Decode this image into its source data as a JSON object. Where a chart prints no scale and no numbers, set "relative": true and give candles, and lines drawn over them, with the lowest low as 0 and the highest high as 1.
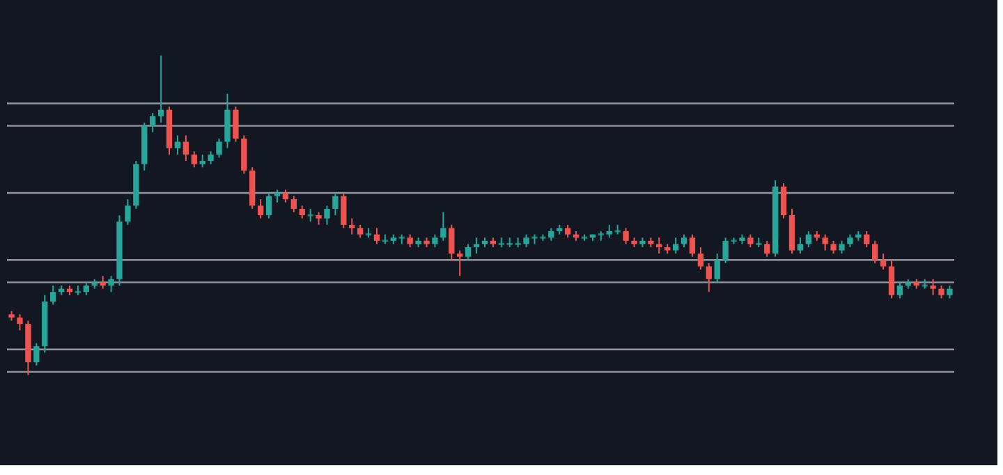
{
  "chart_data": {
    "type": "candlestick",
    "relative": true,
    "tick_labels": false,
    "grid": false,
    "categories": [
      null,
      null,
      null,
      null,
      null,
      null,
      null,
      null,
      null,
      null,
      null,
      null,
      null,
      null,
      null,
      null,
      null,
      null,
      null,
      null,
      null,
      null,
      null,
      null,
      null,
      null,
      null,
      null,
      null,
      null,
      null,
      null,
      null,
      null,
      null,
      null,
      null,
      null,
      null,
      null,
      null,
      null,
      null,
      null,
      null,
      null,
      null,
      null,
      null,
      null,
      null,
      null,
      null,
      null,
      null,
      null,
      null,
      null,
      null,
      null,
      null,
      null,
      null,
      null,
      null,
      null,
      null,
      null,
      null,
      null,
      null,
      null,
      null,
      null,
      null,
      null,
      null,
      null,
      null,
      null,
      null,
      null,
      null,
      null,
      null,
      null,
      null,
      null,
      null,
      null,
      null,
      null,
      null,
      null,
      null,
      null,
      null,
      null,
      null,
      null,
      null,
      null,
      null,
      null,
      null,
      null,
      null,
      null,
      null,
      null,
      null,
      null,
      null,
      null
    ],
    "ohlc": [
      [
        0.19,
        0.2,
        0.17,
        0.18
      ],
      [
        0.18,
        0.19,
        0.14,
        0.16
      ],
      [
        0.16,
        0.17,
        0,
        0.04
      ],
      [
        0.04,
        0.1,
        0.03,
        0.09
      ],
      [
        0.09,
        0.25,
        0.07,
        0.23
      ],
      [
        0.23,
        0.28,
        0.22,
        0.26
      ],
      [
        0.26,
        0.28,
        0.25,
        0.27
      ],
      [
        0.27,
        0.28,
        0.25,
        0.26
      ],
      [
        0.26,
        0.28,
        0.25,
        0.26
      ],
      [
        0.26,
        0.29,
        0.25,
        0.28
      ],
      [
        0.28,
        0.3,
        0.27,
        0.29
      ],
      [
        0.29,
        0.31,
        0.27,
        0.28
      ],
      [
        0.28,
        0.31,
        0.26,
        0.3
      ],
      [
        0.3,
        0.5,
        0.28,
        0.48
      ],
      [
        0.48,
        0.55,
        0.47,
        0.53
      ],
      [
        0.53,
        0.67,
        0.52,
        0.66
      ],
      [
        0.66,
        0.79,
        0.64,
        0.78
      ],
      [
        0.78,
        0.82,
        0.76,
        0.81
      ],
      [
        0.81,
        1,
        0.79,
        0.83
      ],
      [
        0.83,
        0.84,
        0.69,
        0.71
      ],
      [
        0.71,
        0.75,
        0.69,
        0.73
      ],
      [
        0.73,
        0.75,
        0.67,
        0.69
      ],
      [
        0.69,
        0.7,
        0.65,
        0.66
      ],
      [
        0.66,
        0.69,
        0.65,
        0.67
      ],
      [
        0.67,
        0.7,
        0.66,
        0.69
      ],
      [
        0.69,
        0.74,
        0.68,
        0.73
      ],
      [
        0.73,
        0.88,
        0.71,
        0.83
      ],
      [
        0.83,
        0.84,
        0.73,
        0.74
      ],
      [
        0.74,
        0.75,
        0.63,
        0.64
      ],
      [
        0.64,
        0.65,
        0.52,
        0.53
      ],
      [
        0.53,
        0.55,
        0.49,
        0.5
      ],
      [
        0.5,
        0.57,
        0.49,
        0.56
      ],
      [
        0.56,
        0.58,
        0.54,
        0.57
      ],
      [
        0.57,
        0.58,
        0.54,
        0.55
      ],
      [
        0.55,
        0.56,
        0.51,
        0.52
      ],
      [
        0.52,
        0.53,
        0.49,
        0.5
      ],
      [
        0.5,
        0.52,
        0.48,
        0.5
      ],
      [
        0.5,
        0.51,
        0.47,
        0.49
      ],
      [
        0.49,
        0.53,
        0.47,
        0.52
      ],
      [
        0.52,
        0.57,
        0.5,
        0.56
      ],
      [
        0.56,
        0.57,
        0.46,
        0.47
      ],
      [
        0.47,
        0.49,
        0.44,
        0.46
      ],
      [
        0.46,
        0.47,
        0.43,
        0.44
      ],
      [
        0.44,
        0.46,
        0.43,
        0.44
      ],
      [
        0.44,
        0.46,
        0.41,
        0.42
      ],
      [
        0.42,
        0.44,
        0.41,
        0.42
      ],
      [
        0.42,
        0.44,
        0.41,
        0.43
      ],
      [
        0.43,
        0.44,
        0.41,
        0.43
      ],
      [
        0.43,
        0.44,
        0.4,
        0.41
      ],
      [
        0.41,
        0.43,
        0.4,
        0.42
      ],
      [
        0.42,
        0.43,
        0.4,
        0.41
      ],
      [
        0.41,
        0.44,
        0.4,
        0.43
      ],
      [
        0.43,
        0.51,
        0.42,
        0.46
      ],
      [
        0.46,
        0.47,
        0.36,
        0.38
      ],
      [
        0.38,
        0.39,
        0.31,
        0.37
      ],
      [
        0.37,
        0.41,
        0.36,
        0.4
      ],
      [
        0.4,
        0.43,
        0.38,
        0.41
      ],
      [
        0.41,
        0.43,
        0.4,
        0.42
      ],
      [
        0.42,
        0.43,
        0.4,
        0.41
      ],
      [
        0.41,
        0.43,
        0.4,
        0.41
      ],
      [
        0.41,
        0.43,
        0.4,
        0.41
      ],
      [
        0.41,
        0.43,
        0.4,
        0.41
      ],
      [
        0.41,
        0.44,
        0.4,
        0.43
      ],
      [
        0.43,
        0.44,
        0.41,
        0.43
      ],
      [
        0.43,
        0.44,
        0.42,
        0.43
      ],
      [
        0.43,
        0.46,
        0.42,
        0.45
      ],
      [
        0.45,
        0.47,
        0.44,
        0.46
      ],
      [
        0.46,
        0.47,
        0.43,
        0.44
      ],
      [
        0.44,
        0.45,
        0.42,
        0.43
      ],
      [
        0.43,
        0.44,
        0.42,
        0.43
      ],
      [
        0.43,
        0.44,
        0.42,
        0.44
      ],
      [
        0.44,
        0.45,
        0.42,
        0.44
      ],
      [
        0.44,
        0.47,
        0.43,
        0.45
      ],
      [
        0.45,
        0.47,
        0.44,
        0.45
      ],
      [
        0.45,
        0.46,
        0.41,
        0.42
      ],
      [
        0.42,
        0.43,
        0.4,
        0.41
      ],
      [
        0.41,
        0.43,
        0.4,
        0.42
      ],
      [
        0.42,
        0.43,
        0.4,
        0.41
      ],
      [
        0.41,
        0.43,
        0.38,
        0.4
      ],
      [
        0.4,
        0.41,
        0.38,
        0.39
      ],
      [
        0.39,
        0.43,
        0.38,
        0.41
      ],
      [
        0.41,
        0.44,
        0.4,
        0.43
      ],
      [
        0.43,
        0.44,
        0.37,
        0.38
      ],
      [
        0.38,
        0.4,
        0.33,
        0.34
      ],
      [
        0.34,
        0.35,
        0.26,
        0.3
      ],
      [
        0.3,
        0.38,
        0.29,
        0.36
      ],
      [
        0.36,
        0.43,
        0.35,
        0.42
      ],
      [
        0.42,
        0.43,
        0.41,
        0.42
      ],
      [
        0.42,
        0.44,
        0.41,
        0.43
      ],
      [
        0.43,
        0.44,
        0.4,
        0.41
      ],
      [
        0.41,
        0.43,
        0.4,
        0.41
      ],
      [
        0.41,
        0.42,
        0.37,
        0.38
      ],
      [
        0.38,
        0.61,
        0.37,
        0.59
      ],
      [
        0.59,
        0.6,
        0.49,
        0.5
      ],
      [
        0.5,
        0.52,
        0.38,
        0.39
      ],
      [
        0.39,
        0.43,
        0.38,
        0.41
      ],
      [
        0.41,
        0.45,
        0.4,
        0.44
      ],
      [
        0.44,
        0.45,
        0.42,
        0.43
      ],
      [
        0.43,
        0.44,
        0.39,
        0.41
      ],
      [
        0.41,
        0.42,
        0.38,
        0.39
      ],
      [
        0.39,
        0.42,
        0.38,
        0.41
      ],
      [
        0.41,
        0.44,
        0.4,
        0.43
      ],
      [
        0.43,
        0.45,
        0.42,
        0.44
      ],
      [
        0.44,
        0.45,
        0.4,
        0.41
      ],
      [
        0.41,
        0.42,
        0.35,
        0.36
      ],
      [
        0.36,
        0.38,
        0.33,
        0.34
      ],
      [
        0.34,
        0.36,
        0.24,
        0.25
      ],
      [
        0.25,
        0.29,
        0.24,
        0.28
      ],
      [
        0.28,
        0.3,
        0.27,
        0.29
      ],
      [
        0.29,
        0.3,
        0.27,
        0.28
      ],
      [
        0.28,
        0.3,
        0.27,
        0.28
      ],
      [
        0.28,
        0.3,
        0.25,
        0.27
      ],
      [
        0.27,
        0.28,
        0.24,
        0.25
      ],
      [
        0.25,
        0.28,
        0.24,
        0.27
      ]
    ],
    "colors": [
      "#ef5350",
      "#ef5350",
      "#ef5350",
      "#26a69a",
      "#26a69a",
      "#26a69a",
      "#26a69a",
      "#ef5350",
      "#26a69a",
      "#26a69a",
      "#26a69a",
      "#ef5350",
      "#26a69a",
      "#26a69a",
      "#26a69a",
      "#26a69a",
      "#26a69a",
      "#26a69a",
      "#26a69a",
      "#ef5350",
      "#26a69a",
      "#ef5350",
      "#ef5350",
      "#26a69a",
      "#26a69a",
      "#26a69a",
      "#26a69a",
      "#ef5350",
      "#ef5350",
      "#ef5350",
      "#ef5350",
      "#26a69a",
      "#26a69a",
      "#ef5350",
      "#ef5350",
      "#ef5350",
      "#26a69a",
      "#ef5350",
      "#26a69a",
      "#26a69a",
      "#ef5350",
      "#ef5350",
      "#ef5350",
      "#26a69a",
      "#ef5350",
      "#26a69a",
      "#26a69a",
      "#26a69a",
      "#ef5350",
      "#26a69a",
      "#ef5350",
      "#26a69a",
      "#26a69a",
      "#ef5350",
      "#ef5350",
      "#26a69a",
      "#26a69a",
      "#26a69a",
      "#ef5350",
      "#26a69a",
      "#26a69a",
      "#26a69a",
      "#26a69a",
      "#26a69a",
      "#26a69a",
      "#26a69a",
      "#26a69a",
      "#ef5350",
      "#ef5350",
      "#26a69a",
      "#26a69a",
      "#26a69a",
      "#26a69a",
      "#26a69a",
      "#ef5350",
      "#ef5350",
      "#26a69a",
      "#ef5350",
      "#ef5350",
      "#ef5350",
      "#26a69a",
      "#26a69a",
      "#ef5350",
      "#ef5350",
      "#ef5350",
      "#26a69a",
      "#26a69a",
      "#26a69a",
      "#26a69a",
      "#ef5350",
      "#26a69a",
      "#ef5350",
      "#26a69a",
      "#ef5350",
      "#ef5350",
      "#26a69a",
      "#26a69a",
      "#ef5350",
      "#ef5350",
      "#ef5350",
      "#26a69a",
      "#26a69a",
      "#26a69a",
      "#ef5350",
      "#ef5350",
      "#ef5350",
      "#ef5350",
      "#26a69a",
      "#26a69a",
      "#ef5350",
      "#26a69a",
      "#ef5350",
      "#ef5350",
      "#26a69a"
    ],
    "ref_lines": [
      {
        "axis": "y",
        "value": 0.85,
        "color": "#9598a1"
      },
      {
        "axis": "y",
        "value": 0.78,
        "color": "#9598a1"
      },
      {
        "axis": "y",
        "value": 0.57,
        "color": "#9598a1"
      },
      {
        "axis": "y",
        "value": 0.36,
        "color": "#9598a1"
      },
      {
        "axis": "y",
        "value": 0.29,
        "color": "#9598a1"
      },
      {
        "axis": "y",
        "value": 0.08,
        "color": "#9598a1"
      },
      {
        "axis": "y",
        "value": 0.01,
        "color": "#9598a1"
      }
    ]
  }
}
